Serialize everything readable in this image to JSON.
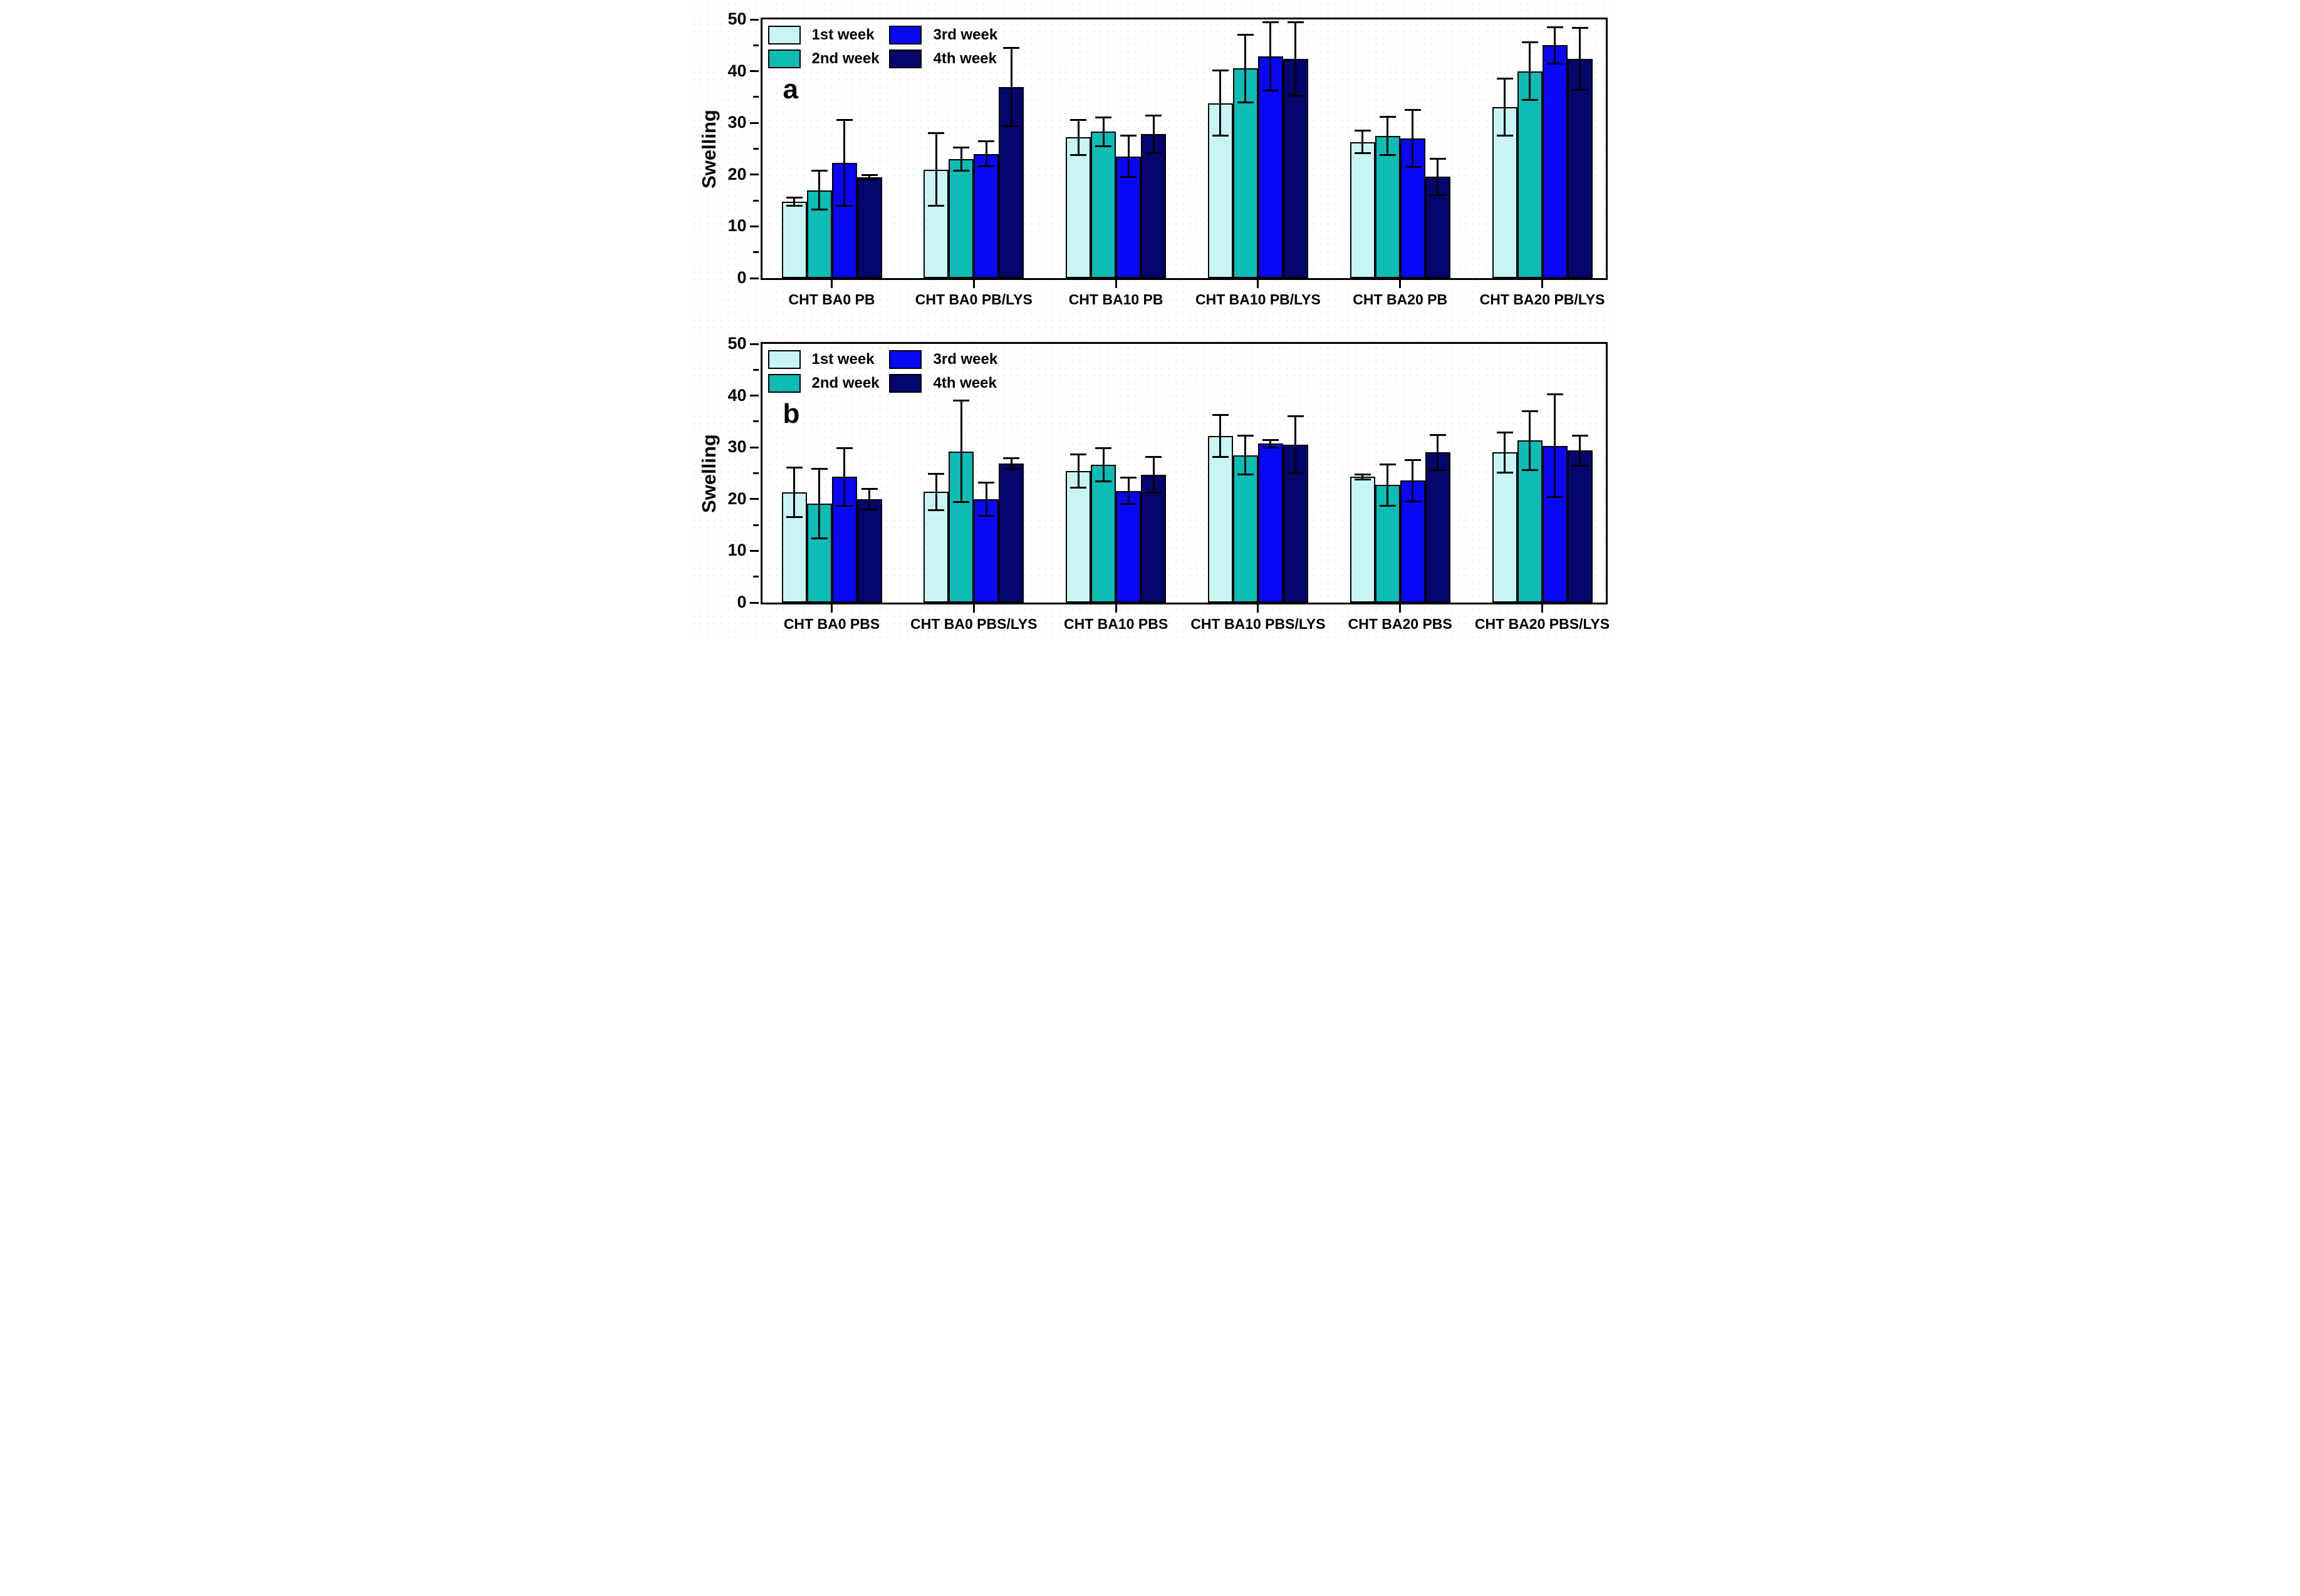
{
  "figure": {
    "ylabel": "Swelling",
    "background_dot_color": "#e4e7f1",
    "axis_color": "#000000"
  },
  "chart_data": [
    {
      "type": "bar",
      "panel_label": "a",
      "ylabel": "Swelling",
      "ylim": [
        0,
        50
      ],
      "yticks": [
        0,
        10,
        20,
        30,
        40,
        50
      ],
      "minor_tick_step": 5,
      "grid": false,
      "legend_position": "top-left",
      "categories": [
        "CHT BA0 PB",
        "CHT BA0 PB/LYS",
        "CHT BA10 PB",
        "CHT BA10 PB/LYS",
        "CHT BA20 PB",
        "CHT BA20 PB/LYS"
      ],
      "series": [
        {
          "name": "1st week",
          "color": "#c9f4f4",
          "values": [
            14.8,
            21.0,
            27.2,
            33.8,
            26.3,
            33.0
          ],
          "errors": [
            0.8,
            7.0,
            3.4,
            6.3,
            2.2,
            5.5
          ]
        },
        {
          "name": "2nd week",
          "color": "#0dbcb4",
          "values": [
            17.0,
            23.0,
            28.3,
            40.5,
            27.5,
            40.0
          ],
          "errors": [
            3.8,
            2.2,
            2.8,
            6.5,
            3.7,
            5.6
          ]
        },
        {
          "name": "3rd week",
          "color": "#0808f5",
          "values": [
            22.3,
            24.0,
            23.5,
            42.8,
            27.0,
            45.0
          ],
          "errors": [
            8.3,
            2.4,
            4.0,
            6.6,
            5.5,
            3.5
          ]
        },
        {
          "name": "4th week",
          "color": "#05056e",
          "values": [
            19.5,
            36.9,
            27.8,
            42.4,
            19.6,
            42.4
          ],
          "errors": [
            0.4,
            7.6,
            3.6,
            7.1,
            3.5,
            6.0
          ]
        }
      ]
    },
    {
      "type": "bar",
      "panel_label": "b",
      "ylabel": "Swelling",
      "ylim": [
        0,
        50
      ],
      "yticks": [
        0,
        10,
        20,
        30,
        40,
        50
      ],
      "minor_tick_step": 5,
      "grid": false,
      "legend_position": "top-left",
      "categories": [
        "CHT BA0 PBS",
        "CHT BA0 PBS/LYS",
        "CHT BA10 PBS",
        "CHT BA10 PBS/LYS",
        "CHT BA20 PBS",
        "CHT BA20 PBS/LYS"
      ],
      "series": [
        {
          "name": "1st week",
          "color": "#c9f4f4",
          "values": [
            21.3,
            21.4,
            25.4,
            32.2,
            24.3,
            29.0
          ],
          "errors": [
            4.8,
            3.5,
            3.2,
            4.0,
            0.5,
            3.9
          ]
        },
        {
          "name": "2nd week",
          "color": "#0dbcb4",
          "values": [
            19.1,
            29.2,
            26.6,
            28.5,
            22.7,
            31.3
          ],
          "errors": [
            6.7,
            9.8,
            3.2,
            3.8,
            4.0,
            5.7
          ]
        },
        {
          "name": "3rd week",
          "color": "#0808f5",
          "values": [
            24.3,
            20.0,
            21.6,
            30.7,
            23.6,
            30.3
          ],
          "errors": [
            5.6,
            3.2,
            2.5,
            0.7,
            4.0,
            9.9
          ]
        },
        {
          "name": "4th week",
          "color": "#05056e",
          "values": [
            20.0,
            26.9,
            24.7,
            30.5,
            29.0,
            29.4
          ],
          "errors": [
            2.0,
            1.0,
            3.5,
            5.5,
            3.4,
            2.9
          ]
        }
      ]
    }
  ]
}
